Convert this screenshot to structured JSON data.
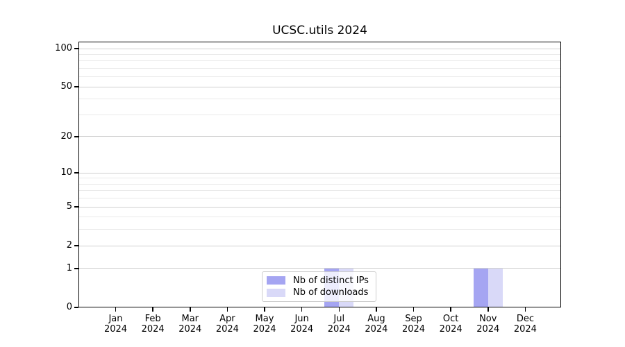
{
  "figure": {
    "background": "#ffffff"
  },
  "chart_data": {
    "type": "bar",
    "title": "UCSC.utils 2024",
    "categories": [
      "Jan",
      "Feb",
      "Mar",
      "Apr",
      "May",
      "Jun",
      "Jul",
      "Aug",
      "Sep",
      "Oct",
      "Nov",
      "Dec"
    ],
    "category_year": "2024",
    "series": [
      {
        "name": "Nb of distinct IPs",
        "color": "#a5a5f2",
        "values": [
          0,
          0,
          0,
          0,
          0,
          0,
          1,
          0,
          0,
          0,
          1,
          0
        ]
      },
      {
        "name": "Nb of downloads",
        "color": "#d9d9f8",
        "values": [
          0,
          0,
          0,
          0,
          0,
          0,
          1,
          0,
          0,
          0,
          1,
          0
        ]
      }
    ],
    "xlabel": "",
    "ylabel": "",
    "yscale": "log1p",
    "ylim": [
      0,
      113
    ],
    "yticks": [
      0,
      1,
      2,
      5,
      10,
      20,
      50,
      100
    ],
    "minor_yticks": [
      3,
      4,
      6,
      7,
      8,
      9,
      30,
      40,
      60,
      70,
      80,
      90
    ],
    "grid": "horizontal",
    "legend_position": "lower center inside",
    "colors": {
      "grid_major": "#cfcfcf",
      "grid_minor": "#eaeaea",
      "axis_frame": "#000000",
      "text": "#000000"
    }
  }
}
